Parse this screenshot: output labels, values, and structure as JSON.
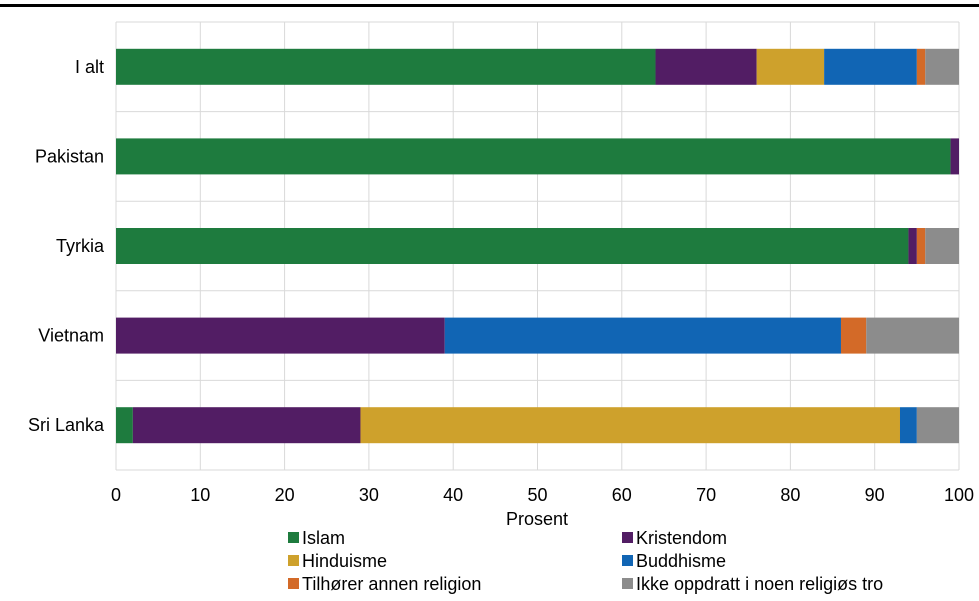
{
  "chart_data": {
    "type": "bar",
    "orientation": "horizontal",
    "stacked": true,
    "categories": [
      "I alt",
      "Pakistan",
      "Tyrkia",
      "Vietnam",
      "Sri Lanka"
    ],
    "series": [
      {
        "name": "Islam",
        "color": "#1e7b3e",
        "values": [
          64,
          99,
          94,
          0,
          2
        ]
      },
      {
        "name": "Kristendom",
        "color": "#521d64",
        "values": [
          12,
          1,
          1,
          39,
          27
        ]
      },
      {
        "name": "Hinduisme",
        "color": "#cea12c",
        "values": [
          8,
          0,
          0,
          0,
          64
        ]
      },
      {
        "name": "Buddhisme",
        "color": "#1165b4",
        "values": [
          11,
          0,
          0,
          47,
          2
        ]
      },
      {
        "name": "Tilhører annen religion",
        "color": "#d36a28",
        "values": [
          1,
          0,
          1,
          3,
          0
        ]
      },
      {
        "name": "Ikke oppdratt i noen religiøs tro",
        "color": "#8c8c8c",
        "values": [
          4,
          0,
          4,
          11,
          5
        ]
      }
    ],
    "xlabel": "Prosent",
    "xlim": [
      0,
      100
    ],
    "xticks": [
      "0",
      "10",
      "20",
      "30",
      "40",
      "50",
      "60",
      "70",
      "80",
      "90",
      "100"
    ],
    "grid": true,
    "legend_position": "bottom"
  }
}
